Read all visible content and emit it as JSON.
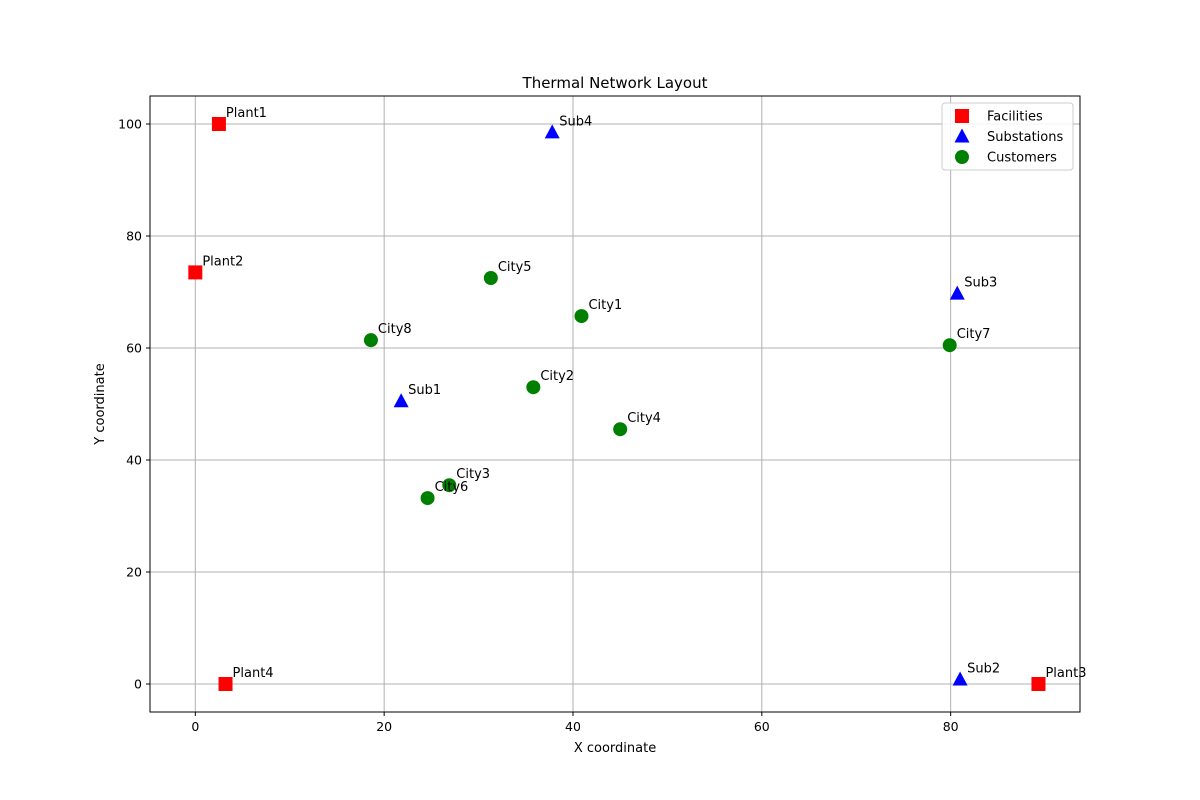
{
  "chart_data": {
    "type": "scatter",
    "title": "Thermal Network Layout",
    "xlabel": "X coordinate",
    "ylabel": "Y coordinate",
    "xlim": [
      -4.8,
      93.7
    ],
    "ylim": [
      -5,
      105
    ],
    "xticks": [
      0,
      20,
      40,
      60,
      80
    ],
    "yticks": [
      0,
      20,
      40,
      60,
      80,
      100
    ],
    "grid": true,
    "legend_position": "top-right",
    "series": [
      {
        "name": "Facilities",
        "marker": "square",
        "color": "#ff0000",
        "points": [
          {
            "label": "Plant1",
            "x": 2.5,
            "y": 100
          },
          {
            "label": "Plant2",
            "x": 0,
            "y": 73.5
          },
          {
            "label": "Plant3",
            "x": 89.3,
            "y": 0
          },
          {
            "label": "Plant4",
            "x": 3.2,
            "y": 0
          }
        ]
      },
      {
        "name": "Substations",
        "marker": "triangle",
        "color": "#0000ff",
        "points": [
          {
            "label": "Sub1",
            "x": 21.8,
            "y": 50.5
          },
          {
            "label": "Sub2",
            "x": 81,
            "y": 0.8
          },
          {
            "label": "Sub3",
            "x": 80.7,
            "y": 69.7
          },
          {
            "label": "Sub4",
            "x": 37.8,
            "y": 98.5
          }
        ]
      },
      {
        "name": "Customers",
        "marker": "circle",
        "color": "#008000",
        "points": [
          {
            "label": "City1",
            "x": 40.9,
            "y": 65.7
          },
          {
            "label": "City2",
            "x": 35.8,
            "y": 53
          },
          {
            "label": "City3",
            "x": 26.9,
            "y": 35.5
          },
          {
            "label": "City4",
            "x": 45,
            "y": 45.5
          },
          {
            "label": "City5",
            "x": 31.3,
            "y": 72.5
          },
          {
            "label": "City6",
            "x": 24.6,
            "y": 33.2
          },
          {
            "label": "City7",
            "x": 79.9,
            "y": 60.5
          },
          {
            "label": "City8",
            "x": 18.6,
            "y": 61.4
          }
        ]
      }
    ]
  }
}
